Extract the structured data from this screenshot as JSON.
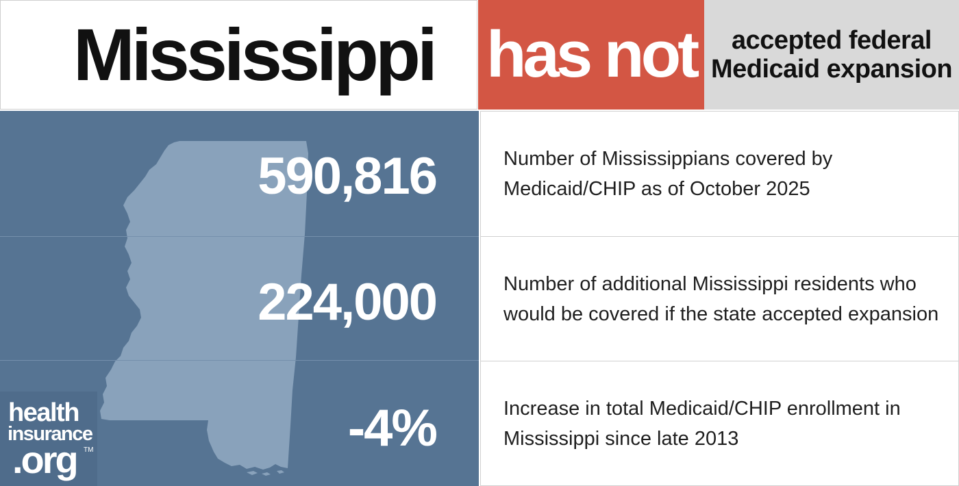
{
  "header": {
    "state": "Mississippi",
    "status": "has not",
    "description_line1": "accepted federal",
    "description_line2": "Medicaid expansion"
  },
  "stats": [
    {
      "value": "590,816",
      "description": "Number of Mississippians covered by Medicaid/CHIP as of October 2025"
    },
    {
      "value": "224,000",
      "description": "Number of additional Mississippi residents who would be covered if the state accepted expansion"
    },
    {
      "value": "-4%",
      "description": "Increase in total Medicaid/CHIP enrollment in Mississippi since late 2013"
    }
  ],
  "logo": {
    "line1": "health",
    "line2": "insurance",
    "line3": ".org",
    "trademark": "TM"
  },
  "colors": {
    "status_red": "#d35644",
    "panel_blue": "#567493",
    "map_fill": "#89a2bb",
    "header_gray": "#d9d9d9"
  },
  "icons": {
    "map": "mississippi-state-silhouette"
  }
}
